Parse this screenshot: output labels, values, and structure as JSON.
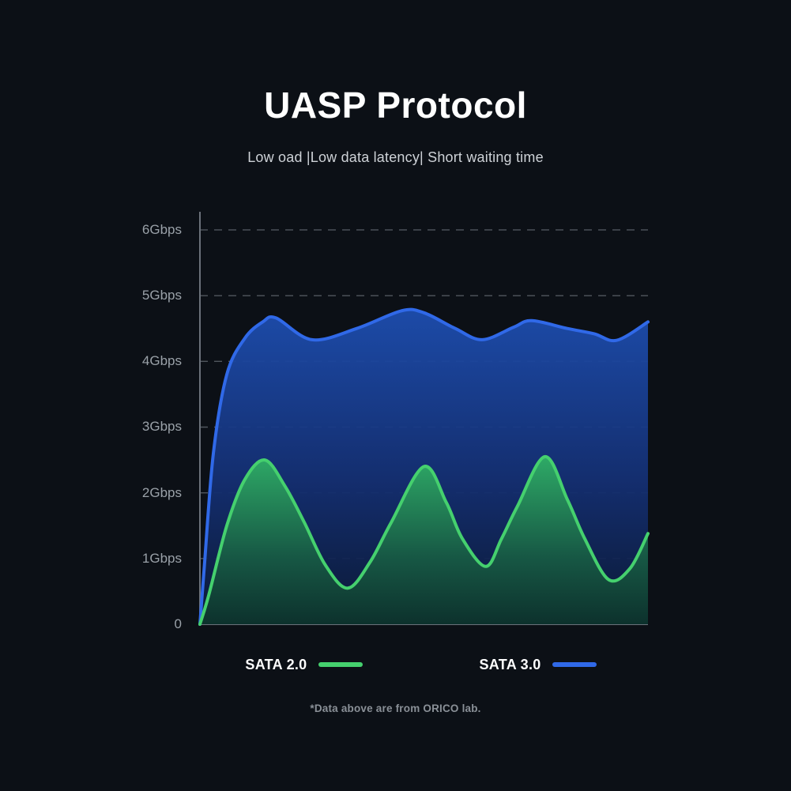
{
  "title": "UASP Protocol",
  "subtitle": "Low oad |Low data latency| Short waiting time",
  "footnote": "*Data above are from ORICO lab.",
  "colors": {
    "background": "#0c1016",
    "grid": "#50565e",
    "axis": "#6b717a",
    "sata30_line": "#3069e8",
    "sata20_line": "#45d06e"
  },
  "legend": [
    {
      "label": "SATA 2.0",
      "color": "#45d06e"
    },
    {
      "label": "SATA 3.0",
      "color": "#3069e8"
    }
  ],
  "chart_data": {
    "type": "area",
    "title": "UASP Protocol",
    "yticks": [
      "6Gbps",
      "5Gbps",
      "4Gbps",
      "3Gbps",
      "2Gbps",
      "1Gbps",
      "0"
    ],
    "ylim": [
      0,
      6
    ],
    "y_unit": "Gbps",
    "grid": "dashed horizontal",
    "legend_position": "bottom",
    "series": [
      {
        "name": "SATA 3.0",
        "color": "#3069e8",
        "fill_stops": [
          [
            "0%",
            "#1d4dae",
            0.96
          ],
          [
            "55%",
            "#142f72",
            0.95
          ],
          [
            "100%",
            "#0b1a38",
            0.92
          ]
        ],
        "x": [
          0,
          0.01,
          0.03,
          0.06,
          0.1,
          0.14,
          0.17,
          0.25,
          0.35,
          0.45,
          0.5,
          0.57,
          0.63,
          0.7,
          0.74,
          0.82,
          0.88,
          0.93,
          1.0
        ],
        "values": [
          0,
          0.9,
          2.6,
          3.8,
          4.35,
          4.6,
          4.66,
          4.33,
          4.5,
          4.77,
          4.74,
          4.5,
          4.33,
          4.52,
          4.62,
          4.5,
          4.42,
          4.32,
          4.6
        ]
      },
      {
        "name": "SATA 2.0",
        "color": "#45d06e",
        "fill_stops": [
          [
            "0%",
            "#2fae66",
            0.97
          ],
          [
            "60%",
            "#175a44",
            0.96
          ],
          [
            "100%",
            "#0d332c",
            0.94
          ]
        ],
        "x": [
          0,
          0.02,
          0.06,
          0.1,
          0.145,
          0.19,
          0.233,
          0.28,
          0.33,
          0.38,
          0.427,
          0.5,
          0.55,
          0.586,
          0.638,
          0.673,
          0.709,
          0.77,
          0.82,
          0.859,
          0.912,
          0.96,
          1.0
        ],
        "values": [
          0,
          0.45,
          1.5,
          2.2,
          2.5,
          2.1,
          1.55,
          0.9,
          0.55,
          0.95,
          1.55,
          2.4,
          1.85,
          1.3,
          0.88,
          1.3,
          1.8,
          2.55,
          1.9,
          1.3,
          0.68,
          0.85,
          1.38
        ]
      }
    ]
  }
}
